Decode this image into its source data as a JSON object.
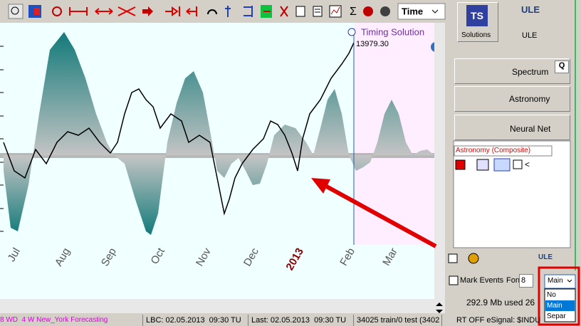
{
  "toolbar": {
    "time_select": "Time",
    "sigma": "Σ"
  },
  "chart": {
    "label": "Timing Solution",
    "price": "13979.30",
    "months": [
      "Jul",
      "Aug",
      "Sep",
      "Oct",
      "Nov",
      "Dec",
      "2013",
      "Feb",
      "Mar"
    ]
  },
  "panel": {
    "solutions": "Solutions",
    "ule": "ULE",
    "buttons": [
      "Spectrum",
      "Astronomy",
      "Neural Net"
    ],
    "q": "Q",
    "module": "Astronomy (Composite)",
    "lt": "<",
    "ule_small": "ULE",
    "mark_events": "Mark Events",
    "font": "Font",
    "font_size": "8",
    "dropdown": "Main",
    "options": [
      "No",
      "Main",
      "Separ"
    ],
    "memory": "292.9 Mb used 26"
  },
  "status": [
    "8 WD  4 W New_York Forecasting",
    "LBC: 02.05.2013  09:30 TU",
    "Last: 02.05.2013  09:30 TU",
    "34025 train/0 test (3402",
    "RT OFF eSignal: $INDU"
  ]
}
